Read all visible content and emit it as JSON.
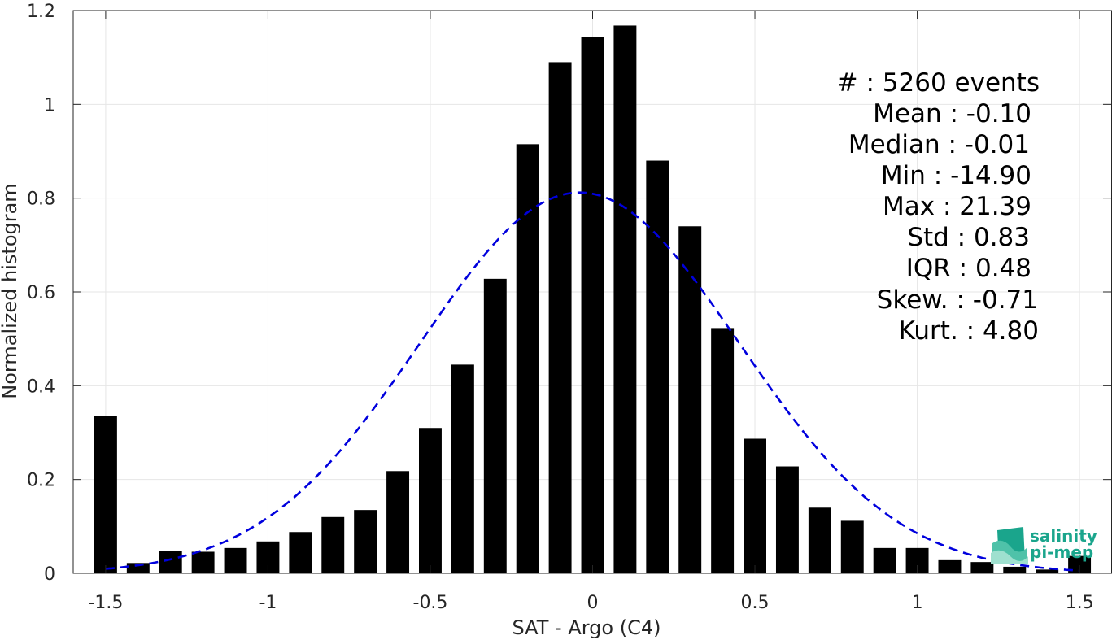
{
  "chart_data": {
    "type": "bar",
    "title": "",
    "xlabel": "SAT - Argo (C4)",
    "ylabel": "Normalized histogram",
    "xlim": [
      -1.6,
      1.6
    ],
    "ylim": [
      0,
      1.2
    ],
    "xticks": [
      -1.5,
      -1,
      -0.5,
      0,
      0.5,
      1,
      1.5
    ],
    "xtick_labels": [
      "-1.5",
      "-1",
      "-0.5",
      "0",
      "0.5",
      "1",
      "1.5"
    ],
    "yticks": [
      0,
      0.2,
      0.4,
      0.6,
      0.8,
      1,
      1.2
    ],
    "ytick_labels": [
      "0",
      "0.2",
      "0.4",
      "0.6",
      "0.8",
      "1",
      "1.2"
    ],
    "grid": true,
    "bar_color": "#000000",
    "bin_width": 0.1,
    "x": [
      -1.5,
      -1.4,
      -1.3,
      -1.2,
      -1.1,
      -1.0,
      -0.9,
      -0.8,
      -0.7,
      -0.6,
      -0.5,
      -0.4,
      -0.3,
      -0.2,
      -0.1,
      0.0,
      0.1,
      0.2,
      0.3,
      0.4,
      0.5,
      0.6,
      0.7,
      0.8,
      0.9,
      1.0,
      1.1,
      1.2,
      1.3,
      1.4,
      1.5
    ],
    "values": [
      0.335,
      0.022,
      0.048,
      0.046,
      0.054,
      0.068,
      0.088,
      0.12,
      0.135,
      0.218,
      0.31,
      0.445,
      0.628,
      0.915,
      1.09,
      1.143,
      1.168,
      0.88,
      0.74,
      0.523,
      0.287,
      0.228,
      0.14,
      0.112,
      0.054,
      0.054,
      0.028,
      0.024,
      0.014,
      0.008,
      0.037
    ],
    "fit_curve": {
      "style": "dashed",
      "color": "#0000dd",
      "mean": -0.04,
      "std": 0.49,
      "peak": 0.812,
      "x_range": [
        -1.5,
        1.5
      ]
    }
  },
  "stats": {
    "lines": [
      "#  : 5260 events",
      "Mean : -0.10",
      "Median : -0.01",
      "Min : -14.90",
      "Max : 21.39",
      "Std : 0.83",
      "IQR : 0.48",
      "Skew. : -0.71",
      "Kurt. : 4.80"
    ]
  },
  "logo": {
    "line1": "salinity",
    "line2": "pi-mep",
    "colors": [
      "#1aa58c",
      "#7fd6c3"
    ]
  }
}
